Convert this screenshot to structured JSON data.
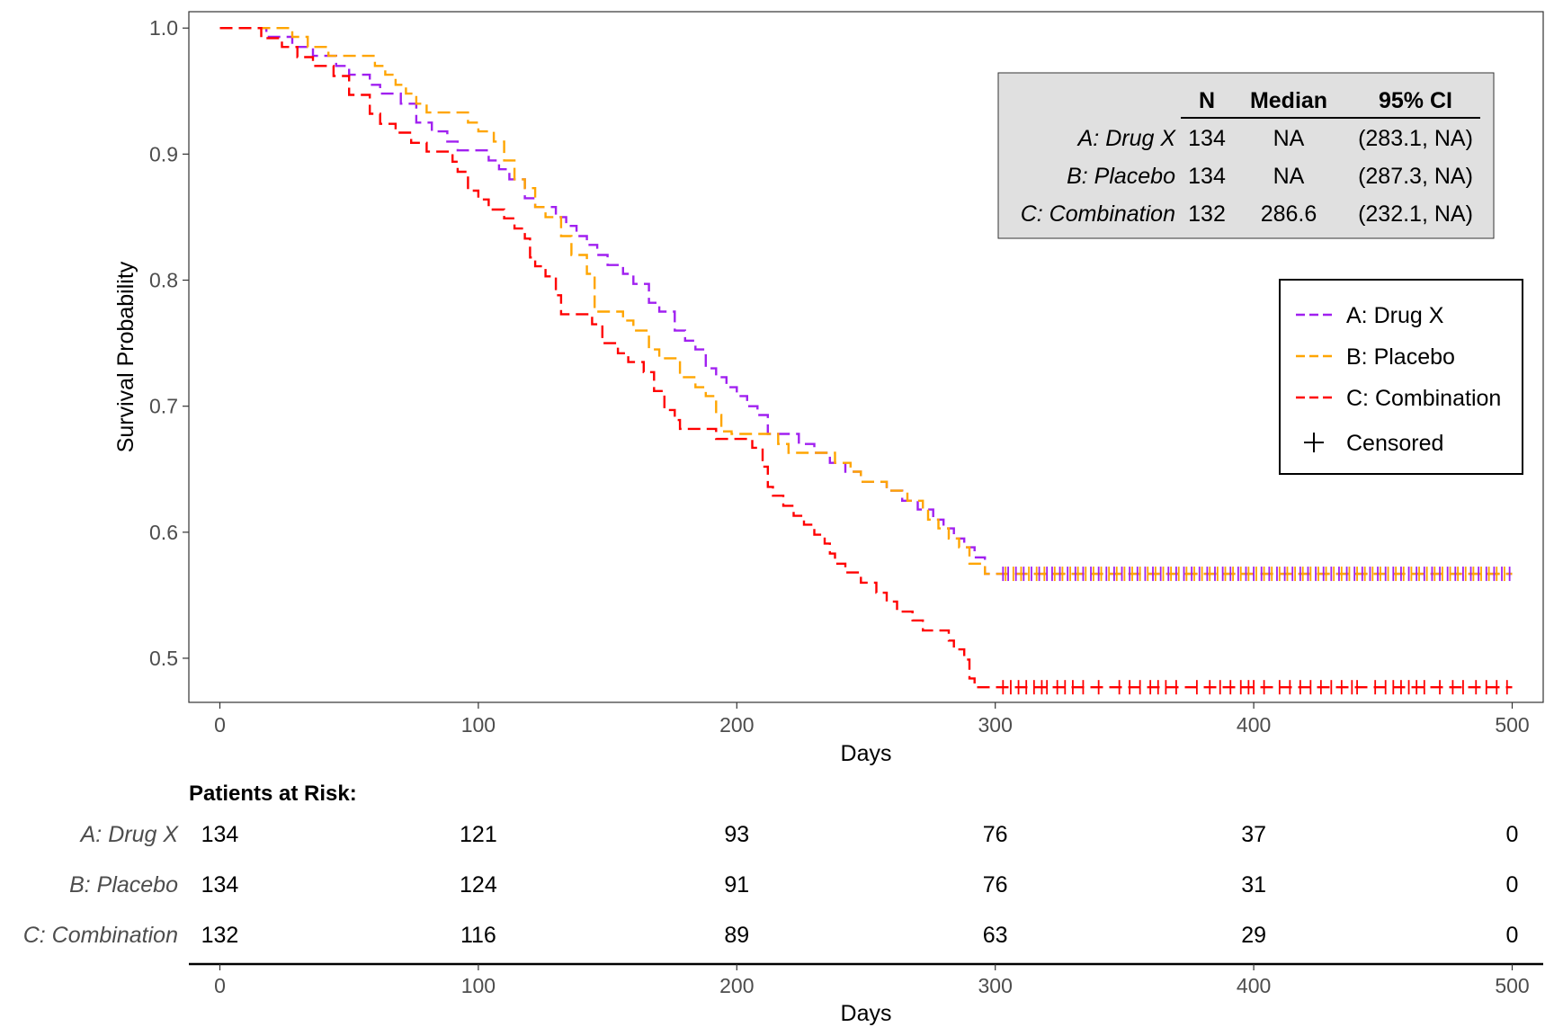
{
  "chart_data": {
    "type": "line",
    "subtype": "kaplan-meier",
    "xlabel": "Days",
    "ylabel": "Survival Probability",
    "xlim": [
      -12,
      512
    ],
    "ylim": [
      0.465,
      1.013
    ],
    "x_ticks": [
      0,
      100,
      200,
      300,
      400,
      500
    ],
    "y_ticks": [
      0.5,
      0.6,
      0.7,
      0.8,
      0.9,
      1.0
    ],
    "y_tick_labels": [
      "0.5",
      "0.6",
      "0.7",
      "0.8",
      "0.9",
      "1.0"
    ],
    "grid": false,
    "series": [
      {
        "name": "A: Drug X",
        "color": "#a020f0",
        "steps": [
          [
            0,
            1.0
          ],
          [
            18,
            0.993
          ],
          [
            28,
            0.985
          ],
          [
            36,
            0.978
          ],
          [
            45,
            0.97
          ],
          [
            50,
            0.963
          ],
          [
            58,
            0.955
          ],
          [
            62,
            0.948
          ],
          [
            70,
            0.94
          ],
          [
            76,
            0.925
          ],
          [
            82,
            0.918
          ],
          [
            88,
            0.91
          ],
          [
            92,
            0.903
          ],
          [
            100,
            0.903
          ],
          [
            104,
            0.895
          ],
          [
            108,
            0.888
          ],
          [
            112,
            0.88
          ],
          [
            118,
            0.865
          ],
          [
            122,
            0.858
          ],
          [
            130,
            0.85
          ],
          [
            134,
            0.843
          ],
          [
            138,
            0.835
          ],
          [
            142,
            0.828
          ],
          [
            146,
            0.82
          ],
          [
            150,
            0.812
          ],
          [
            156,
            0.805
          ],
          [
            160,
            0.797
          ],
          [
            166,
            0.782
          ],
          [
            170,
            0.775
          ],
          [
            176,
            0.76
          ],
          [
            180,
            0.752
          ],
          [
            184,
            0.745
          ],
          [
            188,
            0.73
          ],
          [
            192,
            0.723
          ],
          [
            196,
            0.715
          ],
          [
            200,
            0.708
          ],
          [
            204,
            0.7
          ],
          [
            208,
            0.693
          ],
          [
            212,
            0.678
          ],
          [
            220,
            0.678
          ],
          [
            224,
            0.67
          ],
          [
            230,
            0.663
          ],
          [
            236,
            0.655
          ],
          [
            242,
            0.648
          ],
          [
            248,
            0.64
          ],
          [
            258,
            0.633
          ],
          [
            264,
            0.625
          ],
          [
            270,
            0.618
          ],
          [
            276,
            0.61
          ],
          [
            280,
            0.603
          ],
          [
            284,
            0.595
          ],
          [
            288,
            0.588
          ],
          [
            292,
            0.58
          ],
          [
            296,
            0.567
          ],
          [
            500,
            0.567
          ]
        ],
        "censored_x": [
          303,
          305,
          308,
          311,
          314,
          317,
          320,
          322,
          325,
          328,
          331,
          334,
          337,
          340,
          343,
          346,
          349,
          352,
          355,
          358,
          361,
          364,
          367,
          370,
          373,
          376,
          379,
          382,
          385,
          388,
          391,
          394,
          397,
          400,
          403,
          406,
          409,
          412,
          415,
          418,
          421,
          424,
          427,
          430,
          433,
          436,
          439,
          442,
          445,
          448,
          451,
          454,
          457,
          460,
          463,
          466,
          469,
          472,
          475,
          478,
          481,
          484,
          487,
          490,
          493,
          496,
          499
        ],
        "censored_y": 0.567
      },
      {
        "name": "B: Placebo",
        "color": "#ffa500",
        "steps": [
          [
            0,
            1.0
          ],
          [
            28,
            0.993
          ],
          [
            34,
            0.985
          ],
          [
            42,
            0.978
          ],
          [
            60,
            0.97
          ],
          [
            64,
            0.963
          ],
          [
            68,
            0.955
          ],
          [
            72,
            0.948
          ],
          [
            76,
            0.94
          ],
          [
            80,
            0.933
          ],
          [
            96,
            0.925
          ],
          [
            100,
            0.918
          ],
          [
            106,
            0.91
          ],
          [
            110,
            0.895
          ],
          [
            114,
            0.88
          ],
          [
            118,
            0.873
          ],
          [
            122,
            0.858
          ],
          [
            126,
            0.85
          ],
          [
            132,
            0.835
          ],
          [
            136,
            0.82
          ],
          [
            142,
            0.805
          ],
          [
            145,
            0.775
          ],
          [
            156,
            0.768
          ],
          [
            160,
            0.76
          ],
          [
            166,
            0.745
          ],
          [
            170,
            0.738
          ],
          [
            178,
            0.723
          ],
          [
            184,
            0.715
          ],
          [
            188,
            0.708
          ],
          [
            192,
            0.693
          ],
          [
            194,
            0.68
          ],
          [
            198,
            0.678
          ],
          [
            216,
            0.67
          ],
          [
            220,
            0.663
          ],
          [
            238,
            0.655
          ],
          [
            244,
            0.648
          ],
          [
            248,
            0.64
          ],
          [
            258,
            0.633
          ],
          [
            266,
            0.625
          ],
          [
            272,
            0.618
          ],
          [
            274,
            0.61
          ],
          [
            278,
            0.603
          ],
          [
            282,
            0.595
          ],
          [
            286,
            0.588
          ],
          [
            290,
            0.575
          ],
          [
            296,
            0.567
          ],
          [
            500,
            0.567
          ]
        ],
        "censored_x": [
          304,
          307,
          310,
          313,
          316,
          319,
          323,
          326,
          329,
          332,
          335,
          338,
          341,
          344,
          347,
          350,
          353,
          356,
          359,
          362,
          365,
          368,
          371,
          374,
          377,
          380,
          383,
          386,
          389,
          392,
          395,
          398,
          401,
          404,
          407,
          410,
          413,
          416,
          419,
          422,
          425,
          428,
          431,
          434,
          437,
          440,
          443,
          446,
          449,
          452,
          455,
          458,
          461,
          464,
          467,
          470,
          473,
          476,
          479,
          482,
          485,
          488,
          491,
          494,
          497
        ],
        "censored_y": 0.567
      },
      {
        "name": "C: Combination",
        "color": "#ff0000",
        "steps": [
          [
            0,
            1.0
          ],
          [
            16,
            0.992
          ],
          [
            24,
            0.985
          ],
          [
            30,
            0.977
          ],
          [
            36,
            0.97
          ],
          [
            44,
            0.962
          ],
          [
            50,
            0.947
          ],
          [
            58,
            0.932
          ],
          [
            62,
            0.924
          ],
          [
            68,
            0.917
          ],
          [
            74,
            0.909
          ],
          [
            80,
            0.902
          ],
          [
            90,
            0.894
          ],
          [
            92,
            0.886
          ],
          [
            96,
            0.871
          ],
          [
            100,
            0.864
          ],
          [
            104,
            0.856
          ],
          [
            110,
            0.849
          ],
          [
            114,
            0.841
          ],
          [
            118,
            0.833
          ],
          [
            120,
            0.818
          ],
          [
            122,
            0.811
          ],
          [
            126,
            0.803
          ],
          [
            130,
            0.788
          ],
          [
            132,
            0.773
          ],
          [
            134,
            0.773
          ],
          [
            140,
            0.773
          ],
          [
            144,
            0.765
          ],
          [
            148,
            0.75
          ],
          [
            154,
            0.742
          ],
          [
            158,
            0.735
          ],
          [
            164,
            0.727
          ],
          [
            168,
            0.712
          ],
          [
            172,
            0.697
          ],
          [
            176,
            0.689
          ],
          [
            178,
            0.682
          ],
          [
            186,
            0.682
          ],
          [
            192,
            0.674
          ],
          [
            206,
            0.667
          ],
          [
            210,
            0.652
          ],
          [
            212,
            0.636
          ],
          [
            214,
            0.629
          ],
          [
            218,
            0.621
          ],
          [
            222,
            0.613
          ],
          [
            226,
            0.606
          ],
          [
            230,
            0.598
          ],
          [
            234,
            0.591
          ],
          [
            236,
            0.583
          ],
          [
            238,
            0.575
          ],
          [
            242,
            0.568
          ],
          [
            248,
            0.56
          ],
          [
            254,
            0.552
          ],
          [
            258,
            0.545
          ],
          [
            262,
            0.537
          ],
          [
            268,
            0.53
          ],
          [
            272,
            0.522
          ],
          [
            276,
            0.522
          ],
          [
            282,
            0.514
          ],
          [
            284,
            0.507
          ],
          [
            288,
            0.499
          ],
          [
            290,
            0.484
          ],
          [
            292,
            0.477
          ],
          [
            500,
            0.477
          ]
        ],
        "censored_x": [
          303,
          306,
          309,
          312,
          315,
          318,
          320,
          324,
          327,
          330,
          334,
          340,
          348,
          352,
          356,
          360,
          363,
          366,
          370,
          378,
          383,
          387,
          391,
          395,
          398,
          400,
          404,
          410,
          414,
          418,
          422,
          426,
          430,
          434,
          438,
          440,
          447,
          451,
          454,
          457,
          460,
          463,
          466,
          472,
          477,
          481,
          486,
          490,
          494,
          498
        ],
        "censored_y": 0.477
      }
    ],
    "summary_table": {
      "headers": [
        "",
        "N",
        "Median",
        "95% CI"
      ],
      "rows": [
        {
          "arm": "A: Drug X",
          "n": "134",
          "median": "NA",
          "ci": "(283.1, NA)"
        },
        {
          "arm": "B: Placebo",
          "n": "134",
          "median": "NA",
          "ci": "(287.3, NA)"
        },
        {
          "arm": "C: Combination",
          "n": "132",
          "median": "286.6",
          "ci": "(232.1, NA)"
        }
      ]
    },
    "legend": {
      "placement": "right",
      "entries": [
        "A: Drug X",
        "B: Placebo",
        "C: Combination"
      ],
      "censored_label": "Censored"
    },
    "risk_table": {
      "title": "Patients at Risk:",
      "xlabel": "Days",
      "times": [
        0,
        100,
        200,
        300,
        400,
        500
      ],
      "rows": [
        {
          "arm": "A: Drug X",
          "values": [
            "134",
            "121",
            "93",
            "76",
            "37",
            "0"
          ]
        },
        {
          "arm": "B: Placebo",
          "values": [
            "134",
            "124",
            "91",
            "76",
            "31",
            "0"
          ]
        },
        {
          "arm": "C: Combination",
          "values": [
            "132",
            "116",
            "89",
            "63",
            "29",
            "0"
          ]
        }
      ]
    }
  }
}
